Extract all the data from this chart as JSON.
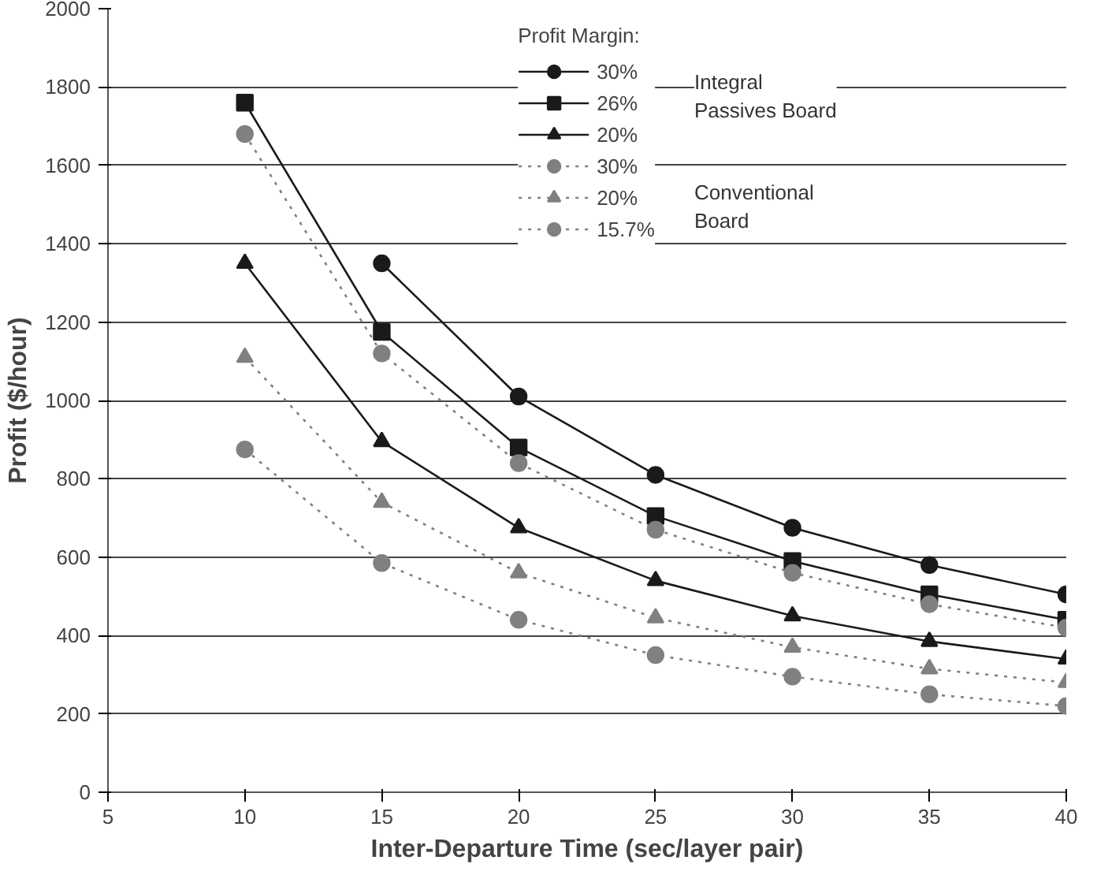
{
  "chart_data": {
    "type": "line",
    "xlabel": "Inter-Departure Time (sec/layer pair)",
    "ylabel": "Profit ($/hour)",
    "x": [
      10,
      15,
      20,
      25,
      30,
      35,
      40
    ],
    "xlim": [
      5,
      40
    ],
    "xticks": [
      5,
      10,
      15,
      20,
      25,
      30,
      35,
      40
    ],
    "ylim": [
      0,
      2000
    ],
    "yticks": [
      0,
      200,
      400,
      600,
      800,
      1000,
      1200,
      1400,
      1600,
      1800,
      2000
    ],
    "grid": "y",
    "legend": "top",
    "legend_title": "Profit Margin:",
    "annotations": [
      "Integral\nPassives Board",
      "Conventional\nBoard"
    ],
    "series": [
      {
        "name": "30%",
        "color": "#1a1a1a",
        "marker": "circle",
        "line_style": "solid",
        "values": [
          null,
          1350,
          1010,
          810,
          675,
          580,
          505
        ]
      },
      {
        "name": "26%",
        "color": "#1a1a1a",
        "marker": "square",
        "line_style": "solid",
        "values": [
          1760,
          1175,
          880,
          705,
          590,
          505,
          440
        ]
      },
      {
        "name": "20%",
        "color": "#1a1a1a",
        "marker": "triangle",
        "line_style": "solid",
        "values": [
          1350,
          895,
          675,
          540,
          450,
          385,
          340
        ]
      },
      {
        "name": "30%",
        "color": "#808080",
        "marker": "circle",
        "line_style": "dotted",
        "values": [
          1680,
          1120,
          840,
          670,
          560,
          480,
          420
        ]
      },
      {
        "name": "20%",
        "color": "#808080",
        "marker": "triangle",
        "line_style": "dotted",
        "values": [
          1110,
          740,
          560,
          445,
          370,
          315,
          280
        ]
      },
      {
        "name": "15.7%",
        "color": "#808080",
        "marker": "circle",
        "line_style": "dotted",
        "values": [
          875,
          585,
          440,
          350,
          295,
          250,
          220
        ]
      }
    ]
  }
}
